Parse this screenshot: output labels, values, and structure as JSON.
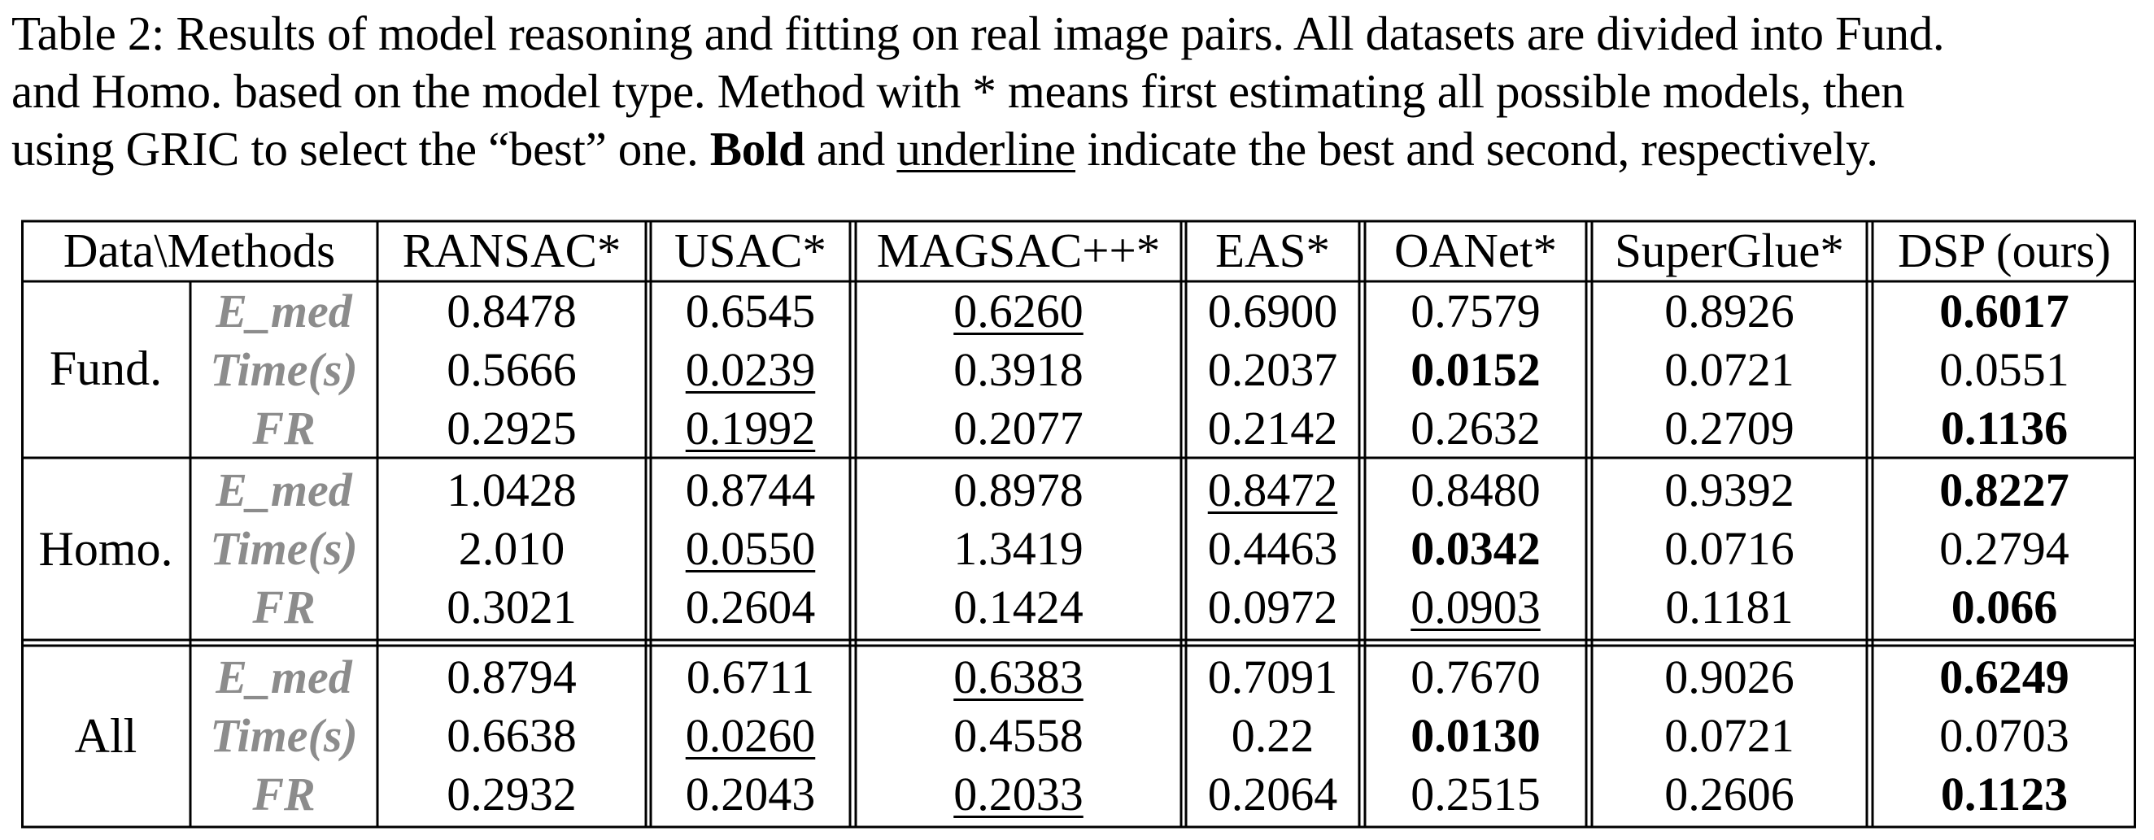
{
  "caption": {
    "line1": "Table 2: Results of model reasoning and fitting on real image pairs. All datasets are divided into Fund.",
    "line2": "and Homo. based on the model type. Method with * means first estimating all possible models, then",
    "line3_pre": "using GRIC to select the “best” one. ",
    "line3_bold": "Bold",
    "line3_mid": " and ",
    "line3_underline": "underline",
    "line3_post": " indicate the best and second, respectively."
  },
  "table": {
    "corner": "Data\\Methods",
    "methods": [
      "RANSAC*",
      "USAC*",
      "MAGSAC++*",
      "EAS*",
      "OANet*",
      "SuperGlue*",
      "DSP (ours)"
    ],
    "groups": [
      {
        "name": "Fund.",
        "rows": [
          {
            "metric": "E_med",
            "values": [
              "0.8478",
              "0.6545",
              "0.6260",
              "0.6900",
              "0.7579",
              "0.8926",
              "0.6017"
            ],
            "best": 6,
            "second": 2
          },
          {
            "metric": "Time(s)",
            "values": [
              "0.5666",
              "0.0239",
              "0.3918",
              "0.2037",
              "0.0152",
              "0.0721",
              "0.0551"
            ],
            "best": 4,
            "second": 1
          },
          {
            "metric": "FR",
            "values": [
              "0.2925",
              "0.1992",
              "0.2077",
              "0.2142",
              "0.2632",
              "0.2709",
              "0.1136"
            ],
            "best": 6,
            "second": 1
          }
        ]
      },
      {
        "name": "Homo.",
        "rows": [
          {
            "metric": "E_med",
            "values": [
              "1.0428",
              "0.8744",
              "0.8978",
              "0.8472",
              "0.8480",
              "0.9392",
              "0.8227"
            ],
            "best": 6,
            "second": 3
          },
          {
            "metric": "Time(s)",
            "values": [
              "2.010",
              "0.0550",
              "1.3419",
              "0.4463",
              "0.0342",
              "0.0716",
              "0.2794"
            ],
            "best": 4,
            "second": 1
          },
          {
            "metric": "FR",
            "values": [
              "0.3021",
              "0.2604",
              "0.1424",
              "0.0972",
              "0.0903",
              "0.1181",
              "0.066"
            ],
            "best": 6,
            "second": 4
          }
        ]
      },
      {
        "name": "All",
        "rows": [
          {
            "metric": "E_med",
            "values": [
              "0.8794",
              "0.6711",
              "0.6383",
              "0.7091",
              "0.7670",
              "0.9026",
              "0.6249"
            ],
            "best": 6,
            "second": 2
          },
          {
            "metric": "Time(s)",
            "values": [
              "0.6638",
              "0.0260",
              "0.4558",
              "0.22",
              "0.0130",
              "0.0721",
              "0.0703"
            ],
            "best": 4,
            "second": 1
          },
          {
            "metric": "FR",
            "values": [
              "0.2932",
              "0.2043",
              "0.2033",
              "0.2064",
              "0.2515",
              "0.2606",
              "0.1123"
            ],
            "best": 6,
            "second": 2
          }
        ]
      }
    ]
  }
}
